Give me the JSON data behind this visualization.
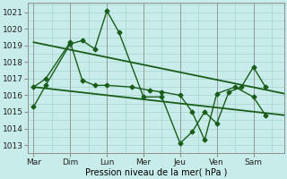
{
  "background_color": "#c8ecea",
  "grid_color": "#a8d4d0",
  "line_color": "#1a5c1a",
  "xlabel": "Pression niveau de la mer( hPa )",
  "xtick_labels": [
    "Mar",
    "Dim",
    "Lun",
    "Mer",
    "Jeu",
    "Ven",
    "Sam"
  ],
  "xlim": [
    -0.15,
    6.85
  ],
  "ylim": [
    1012.5,
    1021.6
  ],
  "yticks": [
    1013,
    1014,
    1015,
    1016,
    1017,
    1018,
    1019,
    1020,
    1021
  ],
  "series": [
    {
      "x": [
        0.0,
        0.33,
        1.0,
        1.33,
        1.67,
        2.0,
        2.33,
        3.0,
        3.5,
        4.0,
        4.33,
        4.67,
        5.0,
        5.33,
        5.67,
        6.0,
        6.33
      ],
      "y": [
        1015.3,
        1016.6,
        1019.1,
        1019.3,
        1018.8,
        1021.1,
        1019.8,
        1015.9,
        1015.9,
        1013.1,
        1013.8,
        1015.0,
        1014.3,
        1016.2,
        1016.5,
        1017.7,
        1016.5
      ],
      "marker": "D",
      "markersize": 2.5,
      "linewidth": 1.0
    },
    {
      "x": [
        0.0,
        0.33,
        1.0,
        1.33,
        1.67,
        2.0,
        2.67,
        3.17,
        3.5,
        4.0,
        4.33,
        4.67,
        5.0,
        5.5,
        6.0,
        6.33
      ],
      "y": [
        1016.5,
        1017.0,
        1019.2,
        1016.9,
        1016.6,
        1016.6,
        1016.5,
        1016.3,
        1016.2,
        1016.0,
        1015.0,
        1013.3,
        1016.1,
        1016.5,
        1015.9,
        1014.8
      ],
      "marker": "D",
      "markersize": 2.5,
      "linewidth": 1.0
    },
    {
      "x": [
        0.0,
        6.85
      ],
      "y": [
        1019.2,
        1016.1
      ],
      "marker": null,
      "linewidth": 1.3
    },
    {
      "x": [
        0.0,
        6.85
      ],
      "y": [
        1016.5,
        1014.8
      ],
      "marker": null,
      "linewidth": 1.3
    }
  ]
}
